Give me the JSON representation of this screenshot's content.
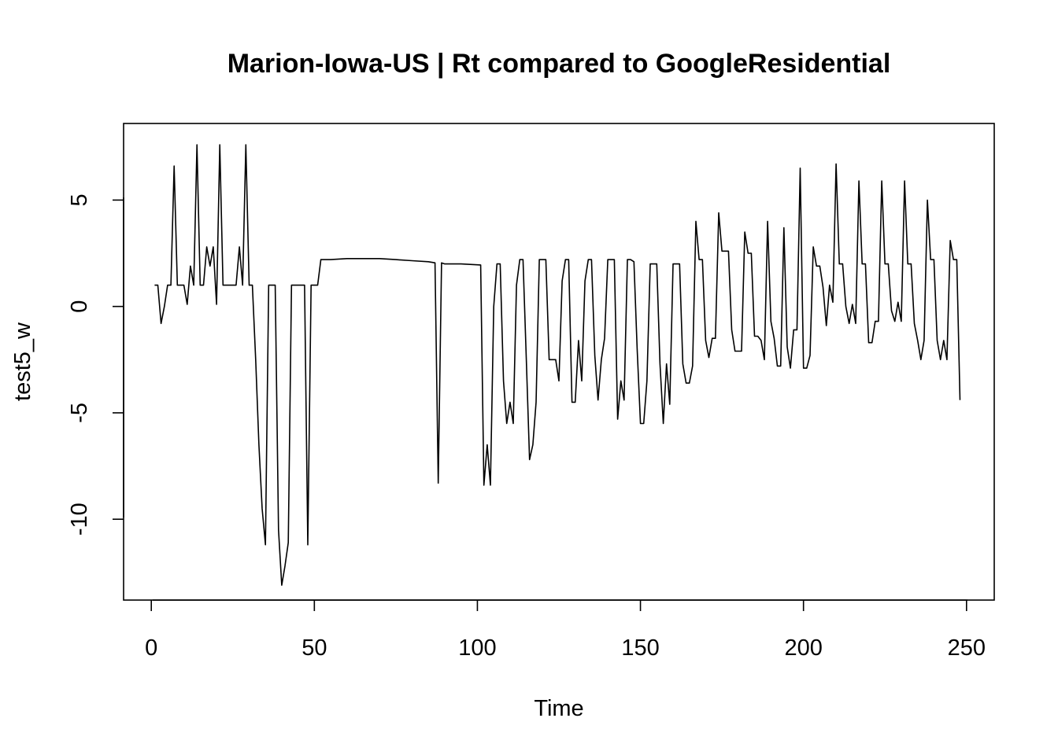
{
  "chart_data": {
    "type": "line",
    "title": "Marion-Iowa-US | Rt compared to GoogleResidential",
    "xlabel": "Time",
    "ylabel": "test5_w",
    "xlim": [
      -8.5,
      258.5
    ],
    "ylim": [
      -13.8,
      8.6
    ],
    "x_ticks": [
      0,
      50,
      100,
      150,
      200,
      250
    ],
    "y_ticks": [
      -10,
      -5,
      0,
      5
    ],
    "grid": false,
    "legend": "none",
    "colors": {
      "line": "#000000"
    },
    "series": [
      {
        "values": [
          [
            1,
            1.0
          ],
          [
            2,
            1.0
          ],
          [
            3,
            -0.8
          ],
          [
            4,
            0.0
          ],
          [
            5,
            1.0
          ],
          [
            6,
            1.0
          ],
          [
            7,
            6.6
          ],
          [
            8,
            1.0
          ],
          [
            9,
            1.0
          ],
          [
            10,
            1.0
          ],
          [
            11,
            0.1
          ],
          [
            12,
            1.9
          ],
          [
            13,
            1.0
          ],
          [
            14,
            7.6
          ],
          [
            15,
            1.0
          ],
          [
            16,
            1.0
          ],
          [
            17,
            2.8
          ],
          [
            18,
            1.9
          ],
          [
            19,
            2.8
          ],
          [
            20,
            0.1
          ],
          [
            21,
            7.6
          ],
          [
            22,
            1.0
          ],
          [
            23,
            1.0
          ],
          [
            24,
            1.0
          ],
          [
            25,
            1.0
          ],
          [
            26,
            1.0
          ],
          [
            27,
            2.8
          ],
          [
            28,
            1.0
          ],
          [
            29,
            7.6
          ],
          [
            30,
            1.0
          ],
          [
            31,
            1.0
          ],
          [
            32,
            -2.5
          ],
          [
            33,
            -6.5
          ],
          [
            34,
            -9.5
          ],
          [
            35,
            -11.2
          ],
          [
            36,
            1.0
          ],
          [
            37,
            1.0
          ],
          [
            38,
            1.0
          ],
          [
            39,
            -10.5
          ],
          [
            40,
            -13.1
          ],
          [
            41,
            -12.2
          ],
          [
            42,
            -11.1
          ],
          [
            43,
            1.0
          ],
          [
            44,
            1.0
          ],
          [
            45,
            1.0
          ],
          [
            46,
            1.0
          ],
          [
            47,
            1.0
          ],
          [
            48,
            -11.2
          ],
          [
            49,
            1.0
          ],
          [
            50,
            1.0
          ],
          [
            51,
            1.0
          ],
          [
            52,
            2.2
          ],
          [
            55,
            2.2
          ],
          [
            60,
            2.25
          ],
          [
            65,
            2.25
          ],
          [
            70,
            2.25
          ],
          [
            75,
            2.2
          ],
          [
            80,
            2.15
          ],
          [
            85,
            2.1
          ],
          [
            87,
            2.05
          ],
          [
            88,
            -8.3
          ],
          [
            89,
            2.05
          ],
          [
            90,
            2.0
          ],
          [
            95,
            2.0
          ],
          [
            101,
            1.95
          ],
          [
            102,
            -8.4
          ],
          [
            103,
            -6.5
          ],
          [
            104,
            -8.4
          ],
          [
            105,
            0.0
          ],
          [
            106,
            2.0
          ],
          [
            107,
            2.0
          ],
          [
            108,
            -3.5
          ],
          [
            109,
            -5.5
          ],
          [
            110,
            -4.5
          ],
          [
            111,
            -5.5
          ],
          [
            112,
            1.0
          ],
          [
            113,
            2.2
          ],
          [
            114,
            2.2
          ],
          [
            115,
            -2.5
          ],
          [
            116,
            -7.2
          ],
          [
            117,
            -6.5
          ],
          [
            118,
            -4.5
          ],
          [
            119,
            2.2
          ],
          [
            120,
            2.2
          ],
          [
            121,
            2.2
          ],
          [
            122,
            -2.5
          ],
          [
            123,
            -2.5
          ],
          [
            124,
            -2.5
          ],
          [
            125,
            -3.5
          ],
          [
            126,
            1.2
          ],
          [
            127,
            2.2
          ],
          [
            128,
            2.2
          ],
          [
            129,
            -4.5
          ],
          [
            130,
            -4.5
          ],
          [
            131,
            -1.6
          ],
          [
            132,
            -3.5
          ],
          [
            133,
            1.2
          ],
          [
            134,
            2.2
          ],
          [
            135,
            2.2
          ],
          [
            136,
            -2.3
          ],
          [
            137,
            -4.4
          ],
          [
            138,
            -2.5
          ],
          [
            139,
            -1.5
          ],
          [
            140,
            2.2
          ],
          [
            141,
            2.2
          ],
          [
            142,
            2.2
          ],
          [
            143,
            -5.3
          ],
          [
            144,
            -3.5
          ],
          [
            145,
            -4.4
          ],
          [
            146,
            2.2
          ],
          [
            147,
            2.2
          ],
          [
            148,
            2.1
          ],
          [
            149,
            -2.0
          ],
          [
            150,
            -5.5
          ],
          [
            151,
            -5.5
          ],
          [
            152,
            -3.5
          ],
          [
            153,
            2.0
          ],
          [
            154,
            2.0
          ],
          [
            155,
            2.0
          ],
          [
            156,
            -2.7
          ],
          [
            157,
            -5.5
          ],
          [
            158,
            -2.7
          ],
          [
            159,
            -4.6
          ],
          [
            160,
            2.0
          ],
          [
            161,
            2.0
          ],
          [
            162,
            2.0
          ],
          [
            163,
            -2.7
          ],
          [
            164,
            -3.6
          ],
          [
            165,
            -3.6
          ],
          [
            166,
            -2.8
          ],
          [
            167,
            4.0
          ],
          [
            168,
            2.2
          ],
          [
            169,
            2.2
          ],
          [
            170,
            -1.6
          ],
          [
            171,
            -2.4
          ],
          [
            172,
            -1.5
          ],
          [
            173,
            -1.5
          ],
          [
            174,
            4.4
          ],
          [
            175,
            2.6
          ],
          [
            176,
            2.6
          ],
          [
            177,
            2.6
          ],
          [
            178,
            -1.1
          ],
          [
            179,
            -2.1
          ],
          [
            180,
            -2.1
          ],
          [
            181,
            -2.1
          ],
          [
            182,
            3.5
          ],
          [
            183,
            2.5
          ],
          [
            184,
            2.5
          ],
          [
            185,
            -1.4
          ],
          [
            186,
            -1.4
          ],
          [
            187,
            -1.6
          ],
          [
            188,
            -2.5
          ],
          [
            189,
            4.0
          ],
          [
            190,
            -0.7
          ],
          [
            191,
            -1.5
          ],
          [
            192,
            -2.8
          ],
          [
            193,
            -2.8
          ],
          [
            194,
            3.7
          ],
          [
            195,
            -1.9
          ],
          [
            196,
            -2.9
          ],
          [
            197,
            -1.1
          ],
          [
            198,
            -1.1
          ],
          [
            199,
            6.5
          ],
          [
            200,
            -2.9
          ],
          [
            201,
            -2.9
          ],
          [
            202,
            -2.3
          ],
          [
            203,
            2.8
          ],
          [
            204,
            1.9
          ],
          [
            205,
            1.9
          ],
          [
            206,
            0.9
          ],
          [
            207,
            -0.9
          ],
          [
            208,
            1.0
          ],
          [
            209,
            0.2
          ],
          [
            210,
            6.7
          ],
          [
            211,
            2.0
          ],
          [
            212,
            2.0
          ],
          [
            213,
            0.0
          ],
          [
            214,
            -0.8
          ],
          [
            215,
            0.1
          ],
          [
            216,
            -0.8
          ],
          [
            217,
            5.9
          ],
          [
            218,
            2.0
          ],
          [
            219,
            2.0
          ],
          [
            220,
            -1.7
          ],
          [
            221,
            -1.7
          ],
          [
            222,
            -0.7
          ],
          [
            223,
            -0.7
          ],
          [
            224,
            5.9
          ],
          [
            225,
            2.0
          ],
          [
            226,
            2.0
          ],
          [
            227,
            -0.2
          ],
          [
            228,
            -0.7
          ],
          [
            229,
            0.2
          ],
          [
            230,
            -0.7
          ],
          [
            231,
            5.9
          ],
          [
            232,
            2.0
          ],
          [
            233,
            2.0
          ],
          [
            234,
            -0.8
          ],
          [
            235,
            -1.6
          ],
          [
            236,
            -2.5
          ],
          [
            237,
            -1.6
          ],
          [
            238,
            5.0
          ],
          [
            239,
            2.2
          ],
          [
            240,
            2.2
          ],
          [
            241,
            -1.6
          ],
          [
            242,
            -2.5
          ],
          [
            243,
            -1.6
          ],
          [
            244,
            -2.5
          ],
          [
            245,
            3.1
          ],
          [
            246,
            2.2
          ],
          [
            247,
            2.2
          ],
          [
            248,
            -4.4
          ]
        ]
      }
    ]
  }
}
